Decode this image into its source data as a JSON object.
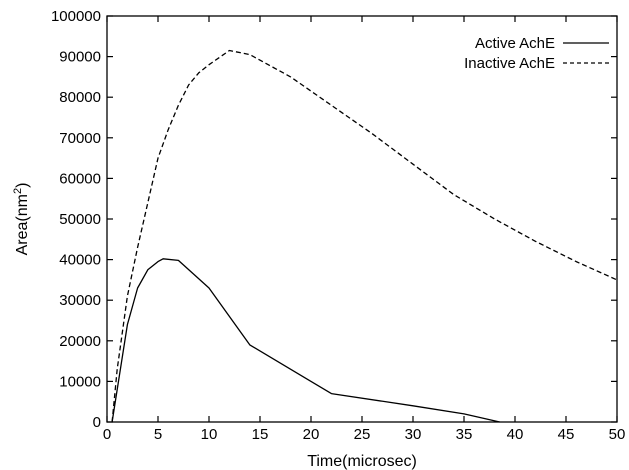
{
  "chart_data": {
    "type": "line",
    "xlabel": "Time(microsec)",
    "ylabel_base": "Area(nm",
    "ylabel_sup": "2",
    "ylabel_close": ")",
    "xlim": [
      0,
      50
    ],
    "ylim": [
      0,
      100000
    ],
    "xticks": [
      0,
      5,
      10,
      15,
      20,
      25,
      30,
      35,
      40,
      45,
      50
    ],
    "yticks": [
      0,
      10000,
      20000,
      30000,
      40000,
      50000,
      60000,
      70000,
      80000,
      90000,
      100000
    ],
    "grid": false,
    "legend_position": "top-right",
    "series": [
      {
        "name": "Active AchE",
        "style": "solid",
        "x": [
          0.5,
          1,
          2,
          3,
          4,
          5,
          5.5,
          7,
          10,
          14,
          22,
          30,
          35,
          38.5
        ],
        "y": [
          0,
          8000,
          24000,
          33000,
          37500,
          39500,
          40200,
          39800,
          33000,
          19000,
          7000,
          4000,
          2000,
          0
        ]
      },
      {
        "name": "Inactive AchE",
        "style": "dashed",
        "x": [
          0.5,
          1,
          2,
          3,
          4,
          5,
          6,
          7,
          8,
          9,
          10,
          12,
          14,
          18,
          22,
          26,
          30,
          34,
          38,
          42,
          46,
          50
        ],
        "y": [
          0,
          13000,
          31000,
          43000,
          54000,
          65000,
          72000,
          78000,
          83000,
          86000,
          88000,
          91500,
          90500,
          85000,
          78000,
          71000,
          63500,
          56000,
          50000,
          44500,
          39500,
          35000
        ]
      }
    ]
  }
}
